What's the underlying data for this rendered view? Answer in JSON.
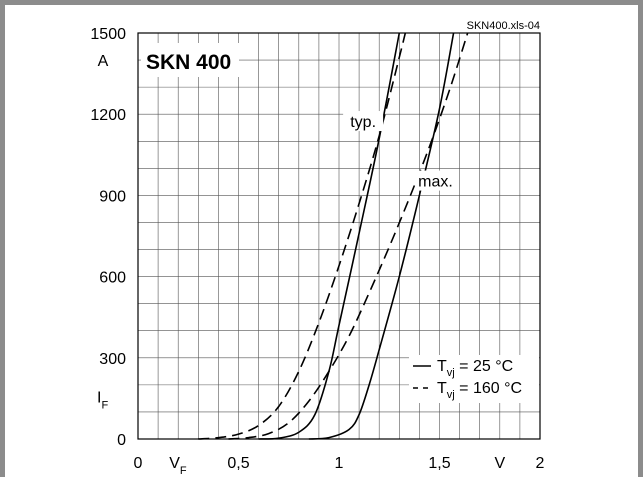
{
  "chart_data": {
    "type": "line",
    "title": "SKN 400",
    "file_label": "SKN400.xls-04",
    "xlabel": "V_F",
    "x_unit": "V",
    "ylabel": "I_F",
    "y_unit": "A",
    "xlim": [
      0,
      2
    ],
    "ylim": [
      0,
      1500
    ],
    "x_ticks": [
      {
        "value": 0,
        "label": "0"
      },
      {
        "value": 0.5,
        "label": "0,5"
      },
      {
        "value": 1,
        "label": "1"
      },
      {
        "value": 1.5,
        "label": "1,5"
      },
      {
        "value": 2,
        "label": "2"
      }
    ],
    "y_ticks": [
      {
        "value": 0,
        "label": "0"
      },
      {
        "value": 300,
        "label": "300"
      },
      {
        "value": 600,
        "label": "600"
      },
      {
        "value": 900,
        "label": "900"
      },
      {
        "value": 1200,
        "label": "1200"
      },
      {
        "value": 1500,
        "label": "1500"
      }
    ],
    "grid": true,
    "grid_step_x": 0.1,
    "grid_step_y": 100,
    "legend_position": "bottom-right",
    "legend": [
      {
        "style": "solid",
        "sym": "T",
        "sub": "vj",
        "text": " =   25 °C"
      },
      {
        "style": "dashed",
        "sym": "T",
        "sub": "vj",
        "text": " = 160 °C"
      }
    ],
    "annotations": [
      {
        "text": "typ.",
        "x": 1.12,
        "y": 1160
      },
      {
        "text": "max.",
        "x": 1.48,
        "y": 940
      }
    ],
    "series": [
      {
        "curve": "typ.",
        "temperature_c": 25,
        "style": "solid",
        "points": [
          [
            0.6,
            0
          ],
          [
            0.7,
            3
          ],
          [
            0.8,
            25
          ],
          [
            0.88,
            90
          ],
          [
            0.95,
            250
          ],
          [
            1.0,
            420
          ],
          [
            1.1,
            760
          ],
          [
            1.2,
            1110
          ],
          [
            1.3,
            1500
          ]
        ]
      },
      {
        "curve": "typ.",
        "temperature_c": 160,
        "style": "dashed",
        "points": [
          [
            0.3,
            0
          ],
          [
            0.4,
            5
          ],
          [
            0.5,
            18
          ],
          [
            0.6,
            50
          ],
          [
            0.7,
            120
          ],
          [
            0.8,
            250
          ],
          [
            0.9,
            430
          ],
          [
            1.0,
            640
          ],
          [
            1.1,
            870
          ],
          [
            1.2,
            1120
          ],
          [
            1.3,
            1410
          ],
          [
            1.33,
            1500
          ]
        ]
      },
      {
        "curve": "max.",
        "temperature_c": 25,
        "style": "solid",
        "points": [
          [
            0.85,
            0
          ],
          [
            0.95,
            5
          ],
          [
            1.05,
            35
          ],
          [
            1.1,
            90
          ],
          [
            1.15,
            200
          ],
          [
            1.2,
            330
          ],
          [
            1.3,
            600
          ],
          [
            1.4,
            900
          ],
          [
            1.5,
            1220
          ],
          [
            1.57,
            1500
          ]
        ]
      },
      {
        "curve": "max.",
        "temperature_c": 160,
        "style": "dashed",
        "points": [
          [
            0.45,
            0
          ],
          [
            0.55,
            5
          ],
          [
            0.65,
            20
          ],
          [
            0.75,
            60
          ],
          [
            0.85,
            140
          ],
          [
            0.95,
            250
          ],
          [
            1.05,
            380
          ],
          [
            1.15,
            540
          ],
          [
            1.25,
            710
          ],
          [
            1.35,
            890
          ],
          [
            1.45,
            1080
          ],
          [
            1.55,
            1290
          ],
          [
            1.64,
            1500
          ]
        ]
      }
    ]
  }
}
